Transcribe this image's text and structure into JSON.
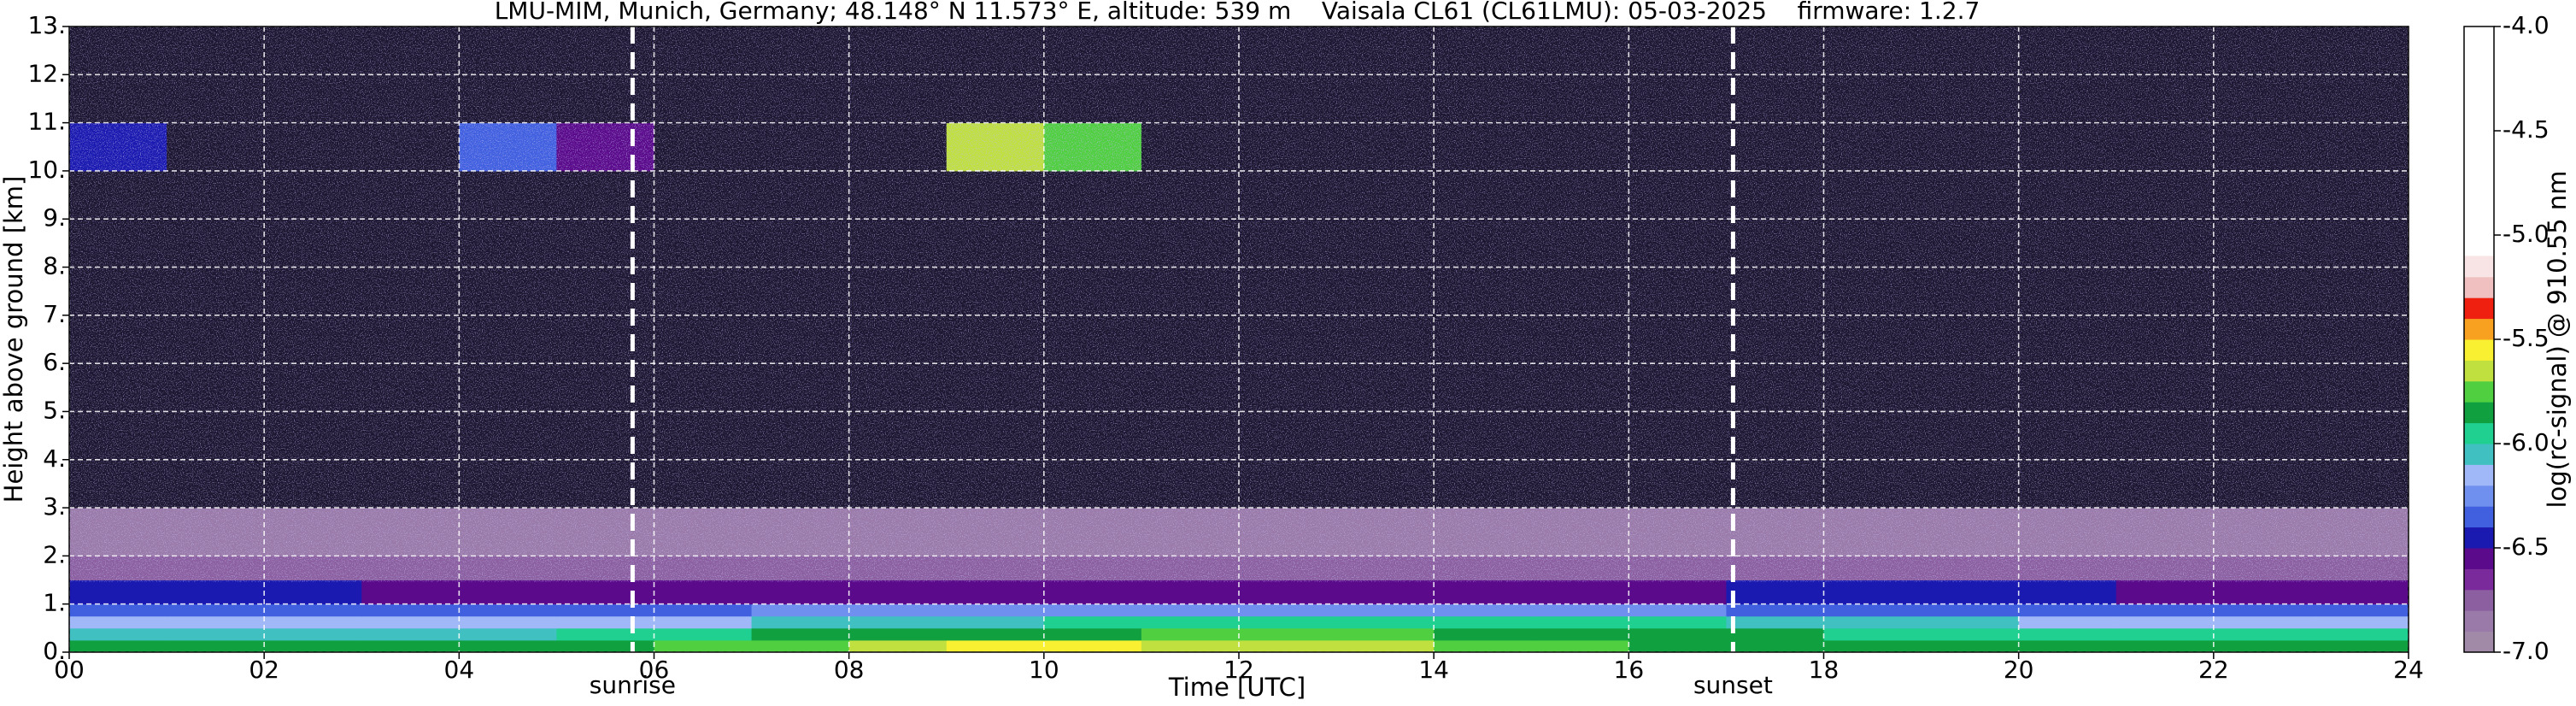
{
  "chart_data": {
    "type": "heatmap",
    "title": "LMU-MIM, Munich, Germany; 48.148° N 11.573° E, altitude: 539 m    Vaisala CL61 (CL61LMU): 05-03-2025    firmware: 1.2.7",
    "xlabel": "Time [UTC]",
    "ylabel": "Height above ground [km]",
    "xlim": [
      0,
      24
    ],
    "ylim": [
      0,
      13
    ],
    "xticks": [
      {
        "value": 0,
        "label": "00"
      },
      {
        "value": 2,
        "label": "02"
      },
      {
        "value": 4,
        "label": "04"
      },
      {
        "value": 6,
        "label": "06"
      },
      {
        "value": 8,
        "label": "08"
      },
      {
        "value": 10,
        "label": "10"
      },
      {
        "value": 12,
        "label": "12"
      },
      {
        "value": 14,
        "label": "14"
      },
      {
        "value": 16,
        "label": "16"
      },
      {
        "value": 18,
        "label": "18"
      },
      {
        "value": 20,
        "label": "20"
      },
      {
        "value": 22,
        "label": "22"
      },
      {
        "value": 24,
        "label": "24"
      }
    ],
    "yticks": [
      {
        "value": 0,
        "label": "0."
      },
      {
        "value": 1,
        "label": "1."
      },
      {
        "value": 2,
        "label": "2."
      },
      {
        "value": 3,
        "label": "3."
      },
      {
        "value": 4,
        "label": "4."
      },
      {
        "value": 5,
        "label": "5."
      },
      {
        "value": 6,
        "label": "6."
      },
      {
        "value": 7,
        "label": "7."
      },
      {
        "value": 8,
        "label": "8."
      },
      {
        "value": 9,
        "label": "9."
      },
      {
        "value": 10,
        "label": "10."
      },
      {
        "value": 11,
        "label": "11."
      },
      {
        "value": 12,
        "label": "12."
      },
      {
        "value": 13,
        "label": "13."
      }
    ],
    "grid": true,
    "x_edges": [
      0,
      1,
      2,
      3,
      4,
      5,
      6,
      7,
      8,
      9,
      10,
      11,
      12,
      13,
      14,
      15,
      16,
      17,
      18,
      19,
      20,
      21,
      22,
      23,
      24
    ],
    "y_edges": [
      0,
      0.25,
      0.5,
      0.75,
      1.0,
      1.5,
      2,
      3,
      10,
      11,
      13
    ],
    "values": [
      [
        -5.9,
        -5.9,
        -5.9,
        -5.9,
        -5.9,
        -5.9,
        -5.8,
        -5.8,
        -5.7,
        -5.6,
        -5.6,
        -5.7,
        -5.7,
        -5.7,
        -5.8,
        -5.8,
        -5.9,
        -5.9,
        -5.9,
        -5.9,
        -5.9,
        -5.9,
        -5.9,
        -5.9
      ],
      [
        -6.1,
        -6.1,
        -6.1,
        -6.1,
        -6.1,
        -6.0,
        -6.0,
        -5.9,
        -5.9,
        -5.9,
        -5.9,
        -5.8,
        -5.8,
        -5.8,
        -5.9,
        -5.9,
        -5.9,
        -5.9,
        -6.0,
        -6.0,
        -6.0,
        -6.0,
        -6.0,
        -6.0
      ],
      [
        -6.2,
        -6.2,
        -6.2,
        -6.2,
        -6.2,
        -6.2,
        -6.2,
        -6.1,
        -6.1,
        -6.1,
        -6.0,
        -6.0,
        -6.0,
        -6.0,
        -6.0,
        -6.0,
        -6.0,
        -6.1,
        -6.1,
        -6.1,
        -6.2,
        -6.2,
        -6.2,
        -6.2
      ],
      [
        -6.4,
        -6.4,
        -6.4,
        -6.4,
        -6.4,
        -6.4,
        -6.4,
        -6.3,
        -6.3,
        -6.3,
        -6.3,
        -6.3,
        -6.3,
        -6.3,
        -6.3,
        -6.3,
        -6.3,
        -6.4,
        -6.4,
        -6.4,
        -6.4,
        -6.4,
        -6.4,
        -6.4
      ],
      [
        -6.5,
        -6.5,
        -6.5,
        -6.6,
        -6.6,
        -6.6,
        -6.6,
        -6.6,
        -6.6,
        -6.6,
        -6.6,
        -6.6,
        -6.6,
        -6.6,
        -6.6,
        -6.6,
        -6.6,
        -6.5,
        -6.5,
        -6.5,
        -6.5,
        -6.6,
        -6.6,
        -6.6
      ],
      [
        -6.8,
        -6.8,
        -6.8,
        -6.8,
        -6.8,
        -6.8,
        -6.8,
        -6.8,
        -6.8,
        -6.8,
        -6.8,
        -6.8,
        -6.8,
        -6.8,
        -6.8,
        -6.8,
        -6.8,
        -6.8,
        -6.8,
        -6.8,
        -6.8,
        -6.8,
        -6.8,
        -6.8
      ],
      [
        -6.9,
        -6.9,
        -6.9,
        -6.9,
        -6.9,
        -6.9,
        -6.9,
        -6.9,
        -6.9,
        -6.9,
        -6.9,
        -6.9,
        -6.9,
        -6.9,
        -6.9,
        -6.9,
        -6.9,
        -6.9,
        -6.9,
        -6.9,
        -6.9,
        -6.9,
        -6.9,
        -6.9
      ],
      [
        -7.2,
        -7.2,
        -7.2,
        -7.2,
        -7.2,
        -7.2,
        -7.2,
        -7.2,
        -7.2,
        -7.2,
        -7.2,
        -7.2,
        -7.2,
        -7.2,
        -7.2,
        -7.2,
        -7.2,
        -7.2,
        -7.2,
        -7.2,
        -7.2,
        -7.2,
        -7.2,
        -7.2
      ],
      [
        -6.5,
        -7.2,
        -7.2,
        -7.2,
        -6.4,
        -6.6,
        -7.2,
        -7.2,
        -7.2,
        -5.7,
        -5.8,
        -7.2,
        -7.2,
        -7.2,
        -7.2,
        -7.2,
        -7.2,
        -7.2,
        -7.2,
        -7.2,
        -7.2,
        -7.2,
        -7.2,
        -7.2
      ],
      [
        -7.2,
        -7.2,
        -7.2,
        -7.2,
        -7.2,
        -7.2,
        -7.2,
        -7.2,
        -7.2,
        -7.2,
        -7.2,
        -7.2,
        -7.2,
        -7.2,
        -7.2,
        -7.2,
        -7.2,
        -7.2,
        -7.2,
        -7.2,
        -7.2,
        -7.2,
        -7.2,
        -7.2
      ]
    ],
    "annotations": [
      {
        "label": "sunrise",
        "x": 5.78
      },
      {
        "label": "sunset",
        "x": 17.07
      }
    ],
    "colorbar": {
      "label": "log(rc-signal) @ 910.55 nm",
      "lim": [
        -7.0,
        -4.0
      ],
      "ticks": [
        {
          "value": -4.0,
          "label": "-4.0"
        },
        {
          "value": -4.5,
          "label": "-4.5"
        },
        {
          "value": -5.0,
          "label": "-5.0"
        },
        {
          "value": -5.5,
          "label": "-5.5"
        },
        {
          "value": -6.0,
          "label": "-6.0"
        },
        {
          "value": -6.5,
          "label": "-6.5"
        },
        {
          "value": -7.0,
          "label": "-7.0"
        }
      ],
      "levels": [
        -7.0,
        -6.9,
        -6.8,
        -6.7,
        -6.6,
        -6.5,
        -6.4,
        -6.3,
        -6.2,
        -6.1,
        -6.0,
        -5.9,
        -5.8,
        -5.7,
        -5.6,
        -5.5,
        -5.4,
        -5.3,
        -5.2,
        -5.1
      ],
      "colors": [
        "#a08aa8",
        "#9a7aa8",
        "#8b5fa0",
        "#7a2a9a",
        "#5a0a8a",
        "#1a1ab0",
        "#4060e0",
        "#7090f0",
        "#a0b8f8",
        "#40c0c0",
        "#20d090",
        "#10a040",
        "#50d040",
        "#c0e040",
        "#f8f030",
        "#f8a020",
        "#f02010",
        "#f0c0c0",
        "#f8e4e4"
      ],
      "under_color": "#1c1630",
      "over_color": "#ffffff"
    }
  }
}
